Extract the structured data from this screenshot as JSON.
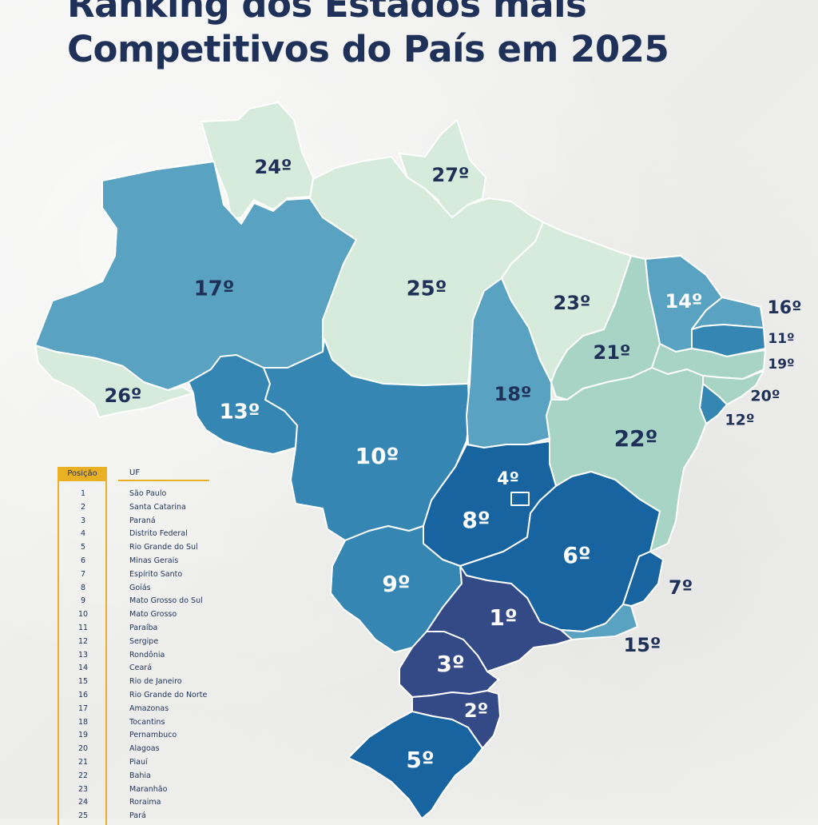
{
  "title": {
    "line1": "Ranking dos Estados mais",
    "line2": "Competitivos do País em 2025"
  },
  "colors": {
    "title": "#1f3158",
    "accent": "#e9b023",
    "tier_1_3": "#344a86",
    "tier_4_8": "#1864a0",
    "tier_9_13": "#3586b3",
    "tier_14_18": "#5aa2c2",
    "tier_19_22": "#a8d4c6",
    "tier_23_27": "#d6ebdb"
  },
  "map": {
    "states": [
      {
        "uf": "Roraima",
        "rank": 24,
        "label": "24º"
      },
      {
        "uf": "Amapá",
        "rank": 27,
        "label": "27º"
      },
      {
        "uf": "Amazonas",
        "rank": 17,
        "label": "17º"
      },
      {
        "uf": "Pará",
        "rank": 25,
        "label": "25º"
      },
      {
        "uf": "Acre",
        "rank": 26,
        "label": "26º"
      },
      {
        "uf": "Rondônia",
        "rank": 13,
        "label": "13º"
      },
      {
        "uf": "Mato Grosso",
        "rank": 10,
        "label": "10º"
      },
      {
        "uf": "Tocantins",
        "rank": 18,
        "label": "18º"
      },
      {
        "uf": "Maranhão",
        "rank": 23,
        "label": "23º"
      },
      {
        "uf": "Piauí",
        "rank": 21,
        "label": "21º"
      },
      {
        "uf": "Ceará",
        "rank": 14,
        "label": "14º"
      },
      {
        "uf": "Rio Grande do Norte",
        "rank": 16,
        "label": "16º"
      },
      {
        "uf": "Paraíba",
        "rank": 11,
        "label": "11º"
      },
      {
        "uf": "Pernambuco",
        "rank": 19,
        "label": "19º"
      },
      {
        "uf": "Alagoas",
        "rank": 20,
        "label": "20º"
      },
      {
        "uf": "Sergipe",
        "rank": 12,
        "label": "12º"
      },
      {
        "uf": "Bahia",
        "rank": 22,
        "label": "22º"
      },
      {
        "uf": "Goiás",
        "rank": 8,
        "label": "8º"
      },
      {
        "uf": "Distrito Federal",
        "rank": 4,
        "label": "4º"
      },
      {
        "uf": "Minas Gerais",
        "rank": 6,
        "label": "6º"
      },
      {
        "uf": "Espírito Santo",
        "rank": 7,
        "label": "7º"
      },
      {
        "uf": "Rio de Janeiro",
        "rank": 15,
        "label": "15º"
      },
      {
        "uf": "Mato Grosso do Sul",
        "rank": 9,
        "label": "9º"
      },
      {
        "uf": "São Paulo",
        "rank": 1,
        "label": "1º"
      },
      {
        "uf": "Paraná",
        "rank": 3,
        "label": "3º"
      },
      {
        "uf": "Santa Catarina",
        "rank": 2,
        "label": "2º"
      },
      {
        "uf": "Rio Grande do Sul",
        "rank": 5,
        "label": "5º"
      }
    ]
  },
  "legend": {
    "header_position": "Posição",
    "header_uf": "UF",
    "rows": [
      {
        "n": "1",
        "uf": "São Paulo"
      },
      {
        "n": "2",
        "uf": "Santa Catarina"
      },
      {
        "n": "3",
        "uf": "Paraná"
      },
      {
        "n": "4",
        "uf": "Distrito Federal"
      },
      {
        "n": "5",
        "uf": "Rio Grande do Sul"
      },
      {
        "n": "6",
        "uf": "Minas Gerais"
      },
      {
        "n": "7",
        "uf": "Espírito Santo"
      },
      {
        "n": "8",
        "uf": "Goiás"
      },
      {
        "n": "9",
        "uf": "Mato Grosso do Sul"
      },
      {
        "n": "10",
        "uf": "Mato Grosso"
      },
      {
        "n": "11",
        "uf": "Paraíba"
      },
      {
        "n": "12",
        "uf": "Sergipe"
      },
      {
        "n": "13",
        "uf": "Rondônia"
      },
      {
        "n": "14",
        "uf": "Ceará"
      },
      {
        "n": "15",
        "uf": "Rio de Janeiro"
      },
      {
        "n": "16",
        "uf": "Rio Grande do Norte"
      },
      {
        "n": "17",
        "uf": "Amazonas"
      },
      {
        "n": "18",
        "uf": "Tocantins"
      },
      {
        "n": "19",
        "uf": "Pernambuco"
      },
      {
        "n": "20",
        "uf": "Alagoas"
      },
      {
        "n": "21",
        "uf": "Piauí"
      },
      {
        "n": "22",
        "uf": "Bahia"
      },
      {
        "n": "23",
        "uf": "Maranhão"
      },
      {
        "n": "24",
        "uf": "Roraima"
      },
      {
        "n": "25",
        "uf": "Pará"
      }
    ]
  }
}
